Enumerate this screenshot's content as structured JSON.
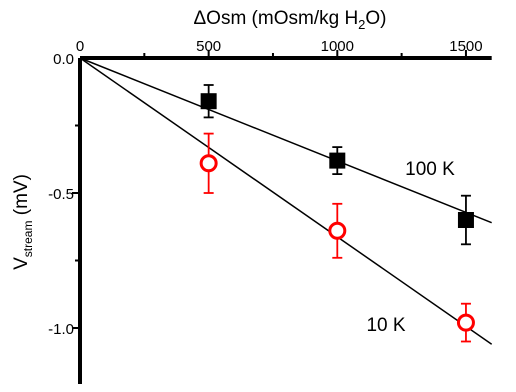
{
  "chart_data": {
    "type": "scatter",
    "title": "",
    "xlabel": "ΔOsm (mOsm/kg H2O)",
    "xlabel_parts": {
      "main": "ΔOsm (mOsm/kg H",
      "sub": "2",
      "end": "O)"
    },
    "ylabel_parts": {
      "main": "V",
      "sub": "stream",
      "end": " (mV)"
    },
    "x_axis_position": "top",
    "xlim": [
      0,
      1600
    ],
    "ylim": [
      -1.2,
      0
    ],
    "xticks": [
      0,
      500,
      1000,
      1500
    ],
    "xtick_labels": [
      "0",
      "500",
      "1000",
      "1500"
    ],
    "yticks": [
      0,
      -0.5,
      -1.0
    ],
    "ytick_labels": [
      "0.0",
      "-0.5",
      "-1.0"
    ],
    "grid": false,
    "series": [
      {
        "name": "100 K",
        "marker": "filled-square",
        "color": "#000000",
        "points": [
          {
            "x": 500,
            "y": -0.16,
            "err": 0.06
          },
          {
            "x": 1000,
            "y": -0.38,
            "err": 0.05
          },
          {
            "x": 1500,
            "y": -0.6,
            "err": 0.09
          }
        ],
        "fit": {
          "x0": 0,
          "y0": 0,
          "x1": 1600,
          "y1": -0.61
        }
      },
      {
        "name": "10 K",
        "marker": "open-circle",
        "color": "#ff0000",
        "points": [
          {
            "x": 500,
            "y": -0.39,
            "err": 0.11
          },
          {
            "x": 1000,
            "y": -0.64,
            "err": 0.1
          },
          {
            "x": 1500,
            "y": -0.98,
            "err": 0.07
          }
        ],
        "fit": {
          "x0": 0,
          "y0": 0,
          "x1": 1600,
          "y1": -1.06
        }
      }
    ]
  }
}
